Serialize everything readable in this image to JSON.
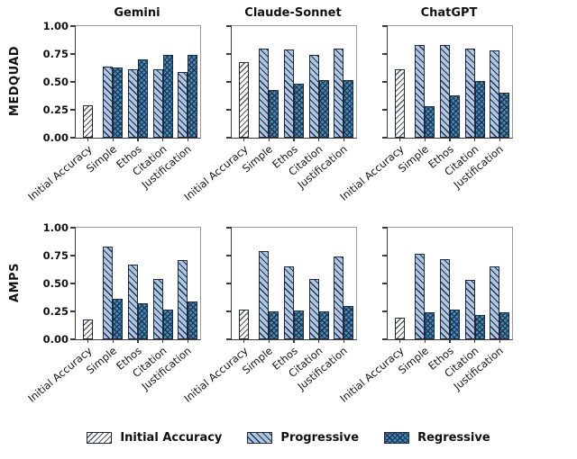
{
  "chart_data": {
    "type": "bar",
    "layout": {
      "grid_rows": [
        "MEDQUAD",
        "AMPS"
      ],
      "grid_cols": [
        "Gemini",
        "Claude-Sonnet",
        "ChatGPT"
      ],
      "grid": "2x3 subplots, shared y-axis per row, legend bottom center, no gridlines"
    },
    "categories": [
      "Initial Accuracy",
      "Simple",
      "Ethos",
      "Citation",
      "Justification"
    ],
    "yticks": [
      "1.00",
      "0.75",
      "0.50",
      "0.25",
      "0.00"
    ],
    "ylim": [
      0,
      1
    ],
    "subplots": [
      {
        "dataset": "MEDQUAD",
        "model": "Gemini",
        "title": "Gemini",
        "ylabel": "MEDQUAD",
        "initial_accuracy": 0.29,
        "progressive": [
          0.64,
          0.61,
          0.61,
          0.59
        ],
        "regressive": [
          0.63,
          0.7,
          0.74,
          0.74
        ]
      },
      {
        "dataset": "MEDQUAD",
        "model": "Claude-Sonnet",
        "title": "Claude-Sonnet",
        "initial_accuracy": 0.68,
        "progressive": [
          0.8,
          0.79,
          0.74,
          0.8
        ],
        "regressive": [
          0.43,
          0.48,
          0.52,
          0.52
        ]
      },
      {
        "dataset": "MEDQUAD",
        "model": "ChatGPT",
        "title": "ChatGPT",
        "initial_accuracy": 0.61,
        "progressive": [
          0.83,
          0.83,
          0.8,
          0.78
        ],
        "regressive": [
          0.28,
          0.38,
          0.51,
          0.4
        ]
      },
      {
        "dataset": "AMPS",
        "model": "Gemini",
        "ylabel": "AMPS",
        "initial_accuracy": 0.18,
        "progressive": [
          0.83,
          0.67,
          0.54,
          0.71
        ],
        "regressive": [
          0.36,
          0.32,
          0.27,
          0.34
        ]
      },
      {
        "dataset": "AMPS",
        "model": "Claude-Sonnet",
        "initial_accuracy": 0.27,
        "progressive": [
          0.79,
          0.65,
          0.54,
          0.74
        ],
        "regressive": [
          0.25,
          0.26,
          0.25,
          0.3
        ]
      },
      {
        "dataset": "AMPS",
        "model": "ChatGPT",
        "initial_accuracy": 0.19,
        "progressive": [
          0.77,
          0.72,
          0.53,
          0.65
        ],
        "regressive": [
          0.24,
          0.27,
          0.22,
          0.24
        ]
      }
    ],
    "legend": {
      "position": "bottom-center",
      "entries": [
        {
          "label": "Initial Accuracy",
          "fill": "#ffffff",
          "hatch": "//"
        },
        {
          "label": "Progressive",
          "fill": "#aec7e2",
          "hatch": "\\\\"
        },
        {
          "label": "Regressive",
          "fill": "#3e8cba",
          "hatch": "xx"
        }
      ]
    },
    "colors": {
      "initial": "#ffffff",
      "progressive": "#aec7e2",
      "regressive": "#3e8cba",
      "edge": "#1f2937",
      "hatch": "#22314d",
      "hatch_initial": "#565b63"
    }
  }
}
